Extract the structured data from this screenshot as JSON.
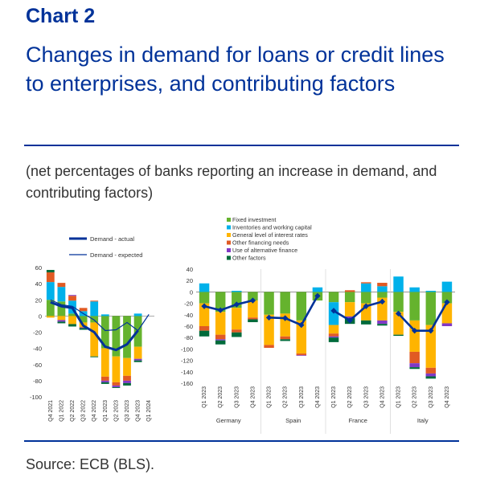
{
  "header": {
    "label": "Chart 2",
    "title": "Changes in demand for loans or credit lines to enterprises, and contributing factors",
    "subtitle": "(net percentages of banks reporting an increase in demand, and contributing factors)"
  },
  "footer": {
    "source": "Source: ECB (BLS)."
  },
  "colors": {
    "fixed_investment": "#65b32e",
    "inventories": "#00b1ea",
    "interest_rates": "#ffb400",
    "other_financing": "#e15a23",
    "alternative_finance": "#8139c6",
    "other_factors": "#006b3b",
    "line": "#003299"
  },
  "chart_data": [
    {
      "type": "bar",
      "subtype": "stacked-bar-with-lines",
      "categories": [
        "Q4 2021",
        "Q1 2022",
        "Q2 2022",
        "Q3 2022",
        "Q4 2022",
        "Q1 2023",
        "Q2 2023",
        "Q3 2023",
        "Q4 2023",
        "Q1 2024"
      ],
      "ylim": [
        -100,
        60
      ],
      "yticks": [
        60,
        40,
        20,
        0,
        -20,
        -40,
        -60,
        -80,
        -100
      ],
      "series": [
        {
          "name": "Fixed investment",
          "color_key": "fixed_investment",
          "values": [
            20,
            18,
            3,
            -8,
            -8,
            -40,
            -50,
            -52,
            -38,
            null
          ]
        },
        {
          "name": "Inventories and working capital",
          "color_key": "inventories",
          "values": [
            22,
            18,
            16,
            6,
            18,
            2,
            0,
            0,
            3,
            null
          ]
        },
        {
          "name": "General level of interest rates",
          "color_key": "interest_rates",
          "values": [
            -2,
            -5,
            -10,
            -6,
            -42,
            -35,
            -32,
            -22,
            -15,
            null
          ]
        },
        {
          "name": "Other financing needs",
          "color_key": "other_financing",
          "values": [
            12,
            5,
            6,
            4,
            1,
            -5,
            -4,
            -6,
            0,
            null
          ]
        },
        {
          "name": "Use of alternative finance",
          "color_key": "alternative_finance",
          "values": [
            0,
            -2,
            1,
            -1,
            0,
            -2,
            -2,
            -3,
            -2,
            null
          ]
        },
        {
          "name": "Other factors",
          "color_key": "other_factors",
          "values": [
            3,
            -2,
            -3,
            -2,
            -1,
            -2,
            -1,
            -3,
            -2,
            null
          ]
        }
      ],
      "lines": [
        {
          "name": "Demand - actual",
          "values": [
            17,
            12,
            10,
            -12,
            -20,
            -38,
            -42,
            -35,
            -18,
            null
          ],
          "width": 3
        },
        {
          "name": "Demand - expected",
          "values": [
            20,
            14,
            12,
            3,
            -5,
            -18,
            -17,
            -8,
            -18,
            2
          ],
          "width": 1.2
        }
      ],
      "legend": [
        "Demand - actual",
        "Demand - expected"
      ],
      "legend_position": "top-right"
    },
    {
      "type": "bar",
      "subtype": "stacked-bar-with-lines",
      "groups": [
        "Germany",
        "Spain",
        "France",
        "Italy"
      ],
      "categories": [
        "Q1 2023",
        "Q2 2023",
        "Q3 2023",
        "Q4 2023"
      ],
      "ylim": [
        -160,
        40
      ],
      "yticks": [
        40,
        20,
        0,
        -20,
        -40,
        -60,
        -80,
        -100,
        -120,
        -140,
        -160
      ],
      "series_order": [
        "Fixed investment",
        "Inventories and working capital",
        "General level of interest rates",
        "Other financing needs",
        "Use of alternative finance",
        "Other factors"
      ],
      "countries": [
        {
          "name": "Germany",
          "fixed_investment": [
            -20,
            -35,
            -28,
            -15
          ],
          "inventories": [
            15,
            0,
            2,
            0
          ],
          "interest_rates": [
            -40,
            -40,
            -38,
            -30
          ],
          "other_financing": [
            -8,
            -8,
            -5,
            -3
          ],
          "alternative_finance": [
            0,
            -2,
            0,
            0
          ],
          "other_factors": [
            -10,
            -7,
            -8,
            -5
          ],
          "demand": [
            -25,
            -32,
            -22,
            -15
          ]
        },
        {
          "name": "Spain",
          "fixed_investment": [
            -40,
            -38,
            -50,
            -15
          ],
          "inventories": [
            0,
            0,
            0,
            8
          ],
          "interest_rates": [
            -53,
            -40,
            -58,
            0
          ],
          "other_financing": [
            -5,
            -5,
            -3,
            0
          ],
          "alternative_finance": [
            0,
            0,
            -1,
            0
          ],
          "other_factors": [
            0,
            -3,
            0,
            0
          ],
          "demand": [
            -45,
            -46,
            -58,
            -7
          ]
        },
        {
          "name": "France",
          "fixed_investment": [
            -18,
            -18,
            -20,
            -10
          ],
          "inventories": [
            -40,
            0,
            15,
            10
          ],
          "interest_rates": [
            -15,
            -25,
            -30,
            -40
          ],
          "other_financing": [
            -5,
            3,
            2,
            6
          ],
          "alternative_finance": [
            -2,
            -3,
            0,
            -6
          ],
          "other_factors": [
            -8,
            -10,
            -7,
            -3
          ],
          "demand": [
            -33,
            -50,
            -25,
            -17
          ]
        },
        {
          "name": "Italy",
          "fixed_investment": [
            -35,
            -50,
            -58,
            -20
          ],
          "inventories": [
            27,
            8,
            2,
            18
          ],
          "interest_rates": [
            -40,
            -55,
            -75,
            -35
          ],
          "other_financing": [
            0,
            -20,
            -10,
            0
          ],
          "alternative_finance": [
            0,
            -7,
            -5,
            -5
          ],
          "other_factors": [
            -2,
            -3,
            -4,
            0
          ],
          "demand": [
            -38,
            -68,
            -68,
            -18
          ]
        }
      ],
      "legend": [
        "Fixed investment",
        "Inventories and working capital",
        "General level of interest rates",
        "Other financing needs",
        "Use of alternative finance",
        "Other factors"
      ],
      "legend_position": "top-left"
    }
  ]
}
